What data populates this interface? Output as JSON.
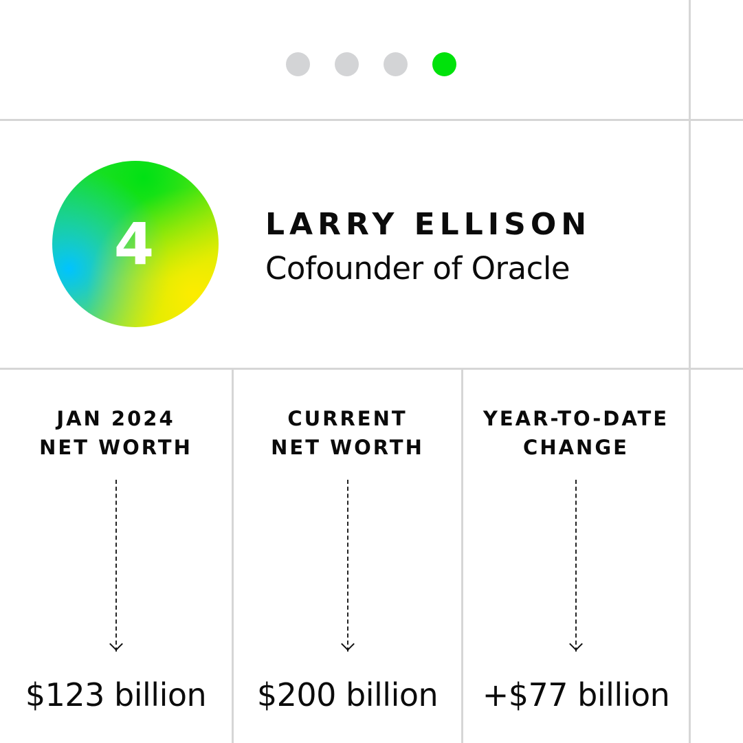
{
  "pagination": {
    "total": 4,
    "active_index": 3,
    "colors": {
      "inactive": "#d3d4d6",
      "active": "#00e20b"
    }
  },
  "profile": {
    "rank": "4",
    "name": "LARRY ELLISON",
    "title": "Cofounder of Oracle"
  },
  "stats": [
    {
      "label_line1": "JAN 2024",
      "label_line2": "NET WORTH",
      "value": "$123 billion"
    },
    {
      "label_line1": "CURRENT",
      "label_line2": "NET WORTH",
      "value": "$200 billion"
    },
    {
      "label_line1": "YEAR-TO-DATE",
      "label_line2": "CHANGE",
      "value": "+$77 billion"
    }
  ]
}
